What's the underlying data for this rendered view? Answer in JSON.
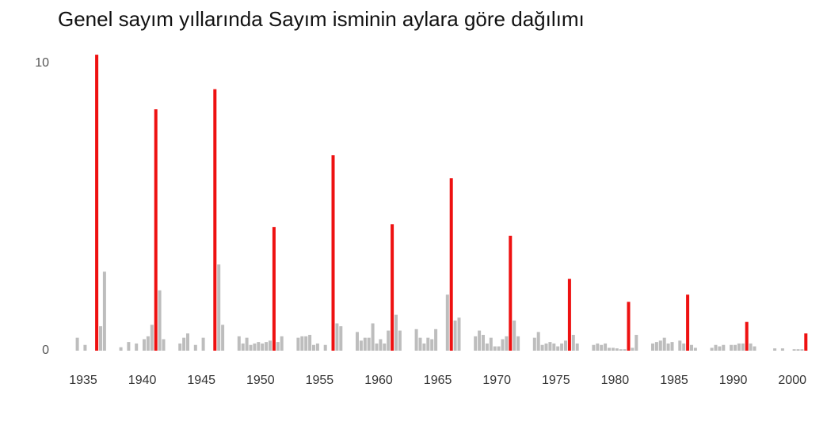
{
  "chart_data": {
    "type": "bar",
    "title": "Genel sayım yıllarında Sayım isminin aylara göre dağılımı",
    "categories": [
      "1935",
      "1940",
      "1945",
      "1950",
      "1955",
      "1960",
      "1965",
      "1970",
      "1975",
      "1980",
      "1985",
      "1990",
      "2000"
    ],
    "values": [
      [
        0,
        0,
        0,
        0,
        0.45,
        0,
        0.2,
        0,
        0,
        10.3,
        0.85,
        2.75
      ],
      [
        0.12,
        0,
        0.3,
        0,
        0.25,
        0,
        0.4,
        0.5,
        0.9,
        8.4,
        2.1,
        0.4
      ],
      [
        0.25,
        0.45,
        0.6,
        0,
        0.2,
        0,
        0.45,
        0,
        0,
        9.1,
        3.0,
        0.9
      ],
      [
        0.5,
        0.25,
        0.45,
        0.2,
        0.25,
        0.3,
        0.25,
        0.3,
        0.35,
        4.3,
        0.3,
        0.5
      ],
      [
        0.45,
        0.5,
        0.5,
        0.55,
        0.2,
        0.25,
        0,
        0.2,
        0,
        6.8,
        0.95,
        0.85
      ],
      [
        0.65,
        0.35,
        0.45,
        0.45,
        0.95,
        0.25,
        0.4,
        0.25,
        0.7,
        4.4,
        1.25,
        0.7
      ],
      [
        0.75,
        0.45,
        0.25,
        0.45,
        0.4,
        0.75,
        0,
        0,
        1.95,
        6.0,
        1.05,
        1.15
      ],
      [
        0.5,
        0.7,
        0.55,
        0.25,
        0.45,
        0.15,
        0.15,
        0.4,
        0.5,
        4.0,
        1.05,
        0.5
      ],
      [
        0.45,
        0.65,
        0.2,
        0.25,
        0.3,
        0.25,
        0.15,
        0.25,
        0.35,
        2.5,
        0.55,
        0.25
      ],
      [
        0.2,
        0.25,
        0.2,
        0.25,
        0.1,
        0.1,
        0.08,
        0.05,
        0.05,
        1.7,
        0.1,
        0.55
      ],
      [
        0.25,
        0.3,
        0.35,
        0.45,
        0.25,
        0.3,
        0,
        0.35,
        0.25,
        1.95,
        0.2,
        0.1
      ],
      [
        0.1,
        0.2,
        0.15,
        0.2,
        0,
        0.2,
        0.2,
        0.25,
        0.25,
        1.0,
        0.25,
        0.15
      ],
      [
        0,
        0.08,
        0,
        0.08,
        0,
        0,
        0.05,
        0.05,
        0.05,
        0.6,
        0,
        0
      ]
    ],
    "color": "#bdbdbd",
    "highlight_color": "#ee1111",
    "highlight_index": 9,
    "ylim": [
      0,
      10.5
    ],
    "yticks": [
      0,
      10
    ],
    "grid": false
  }
}
